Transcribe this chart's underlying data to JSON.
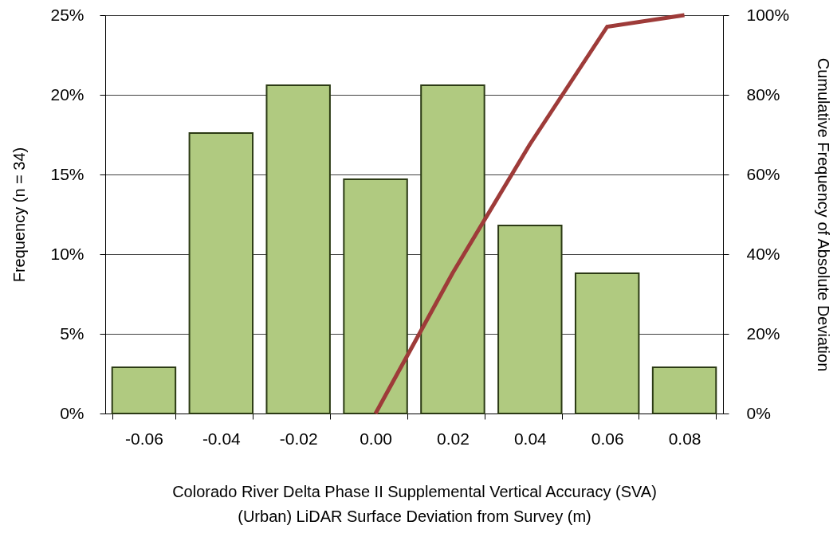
{
  "chart_data": {
    "type": "bar",
    "xlabel": "Colorado River Delta Phase II Supplemental Vertical Accuracy (SVA)\n(Urban) LiDAR Surface Deviation from Survey (m)",
    "ylabel": "Frequency (n = 34)",
    "y2label": "Cumulative Frequency of Absolute Deviation",
    "categories": [
      "-0.06",
      "-0.04",
      "-0.02",
      "0.00",
      "0.02",
      "0.04",
      "0.06",
      "0.08"
    ],
    "series": [
      {
        "color": "#b0ca80",
        "values": [
          2.9,
          17.6,
          20.6,
          14.7,
          20.6,
          11.8,
          8.8,
          2.9
        ]
      },
      {
        "type": "line",
        "axis": "y2",
        "color": "#9e3b39",
        "line_style": "solid",
        "values": [
          null,
          null,
          null,
          0,
          35.3,
          67.6,
          97.1,
          100
        ]
      }
    ],
    "ylim": [
      0,
      25
    ],
    "yticks": [
      {
        "value": 0,
        "label": "0%"
      },
      {
        "value": 5,
        "label": "5%"
      },
      {
        "value": 10,
        "label": "10%"
      },
      {
        "value": 15,
        "label": "15%"
      },
      {
        "value": 20,
        "label": "20%"
      },
      {
        "value": 25,
        "label": "25%"
      }
    ],
    "y2lim": [
      0,
      100
    ],
    "y2ticks": [
      {
        "value": 0,
        "label": "0%"
      },
      {
        "value": 20,
        "label": "20%"
      },
      {
        "value": 40,
        "label": "40%"
      },
      {
        "value": 60,
        "label": "60%"
      },
      {
        "value": 80,
        "label": "80%"
      },
      {
        "value": 100,
        "label": "100%"
      }
    ],
    "grid": "y"
  }
}
